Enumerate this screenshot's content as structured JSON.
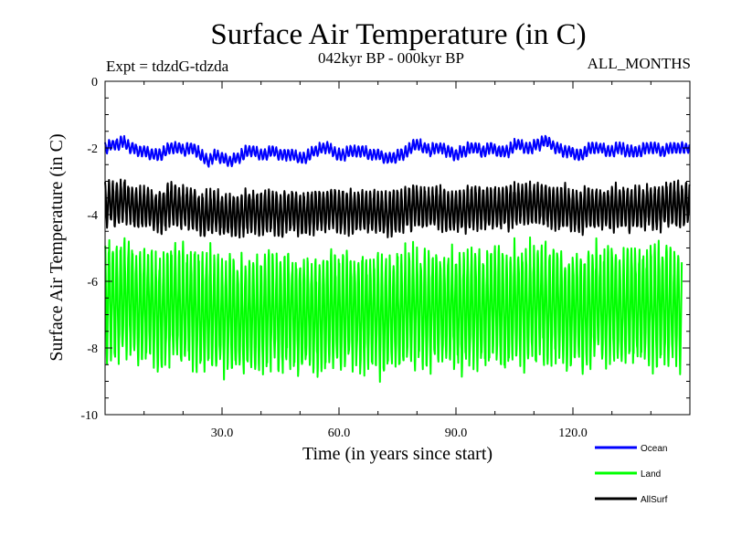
{
  "chart_data": {
    "type": "line",
    "title": "Surface Air Temperature (in C)",
    "subtitle_left": "Expt = tdzdG-tdzda",
    "subtitle_center": "042kyr BP - 000kyr BP",
    "subtitle_right": "ALL_MONTHS",
    "xlabel": "Time (in years since start)",
    "ylabel": "Surface Air Temperature (in C)",
    "xlim": [
      0,
      150
    ],
    "ylim": [
      -10,
      0
    ],
    "xticks": [
      30,
      60,
      90,
      120
    ],
    "xtick_labels": [
      "30.0",
      "60.0",
      "90.0",
      "120.0"
    ],
    "yticks": [
      0,
      -2,
      -4,
      -6,
      -8,
      -10
    ],
    "ytick_labels": [
      "0",
      "-2",
      "-4",
      "-6",
      "-8",
      "-10"
    ],
    "samples_per_year": 12,
    "series": [
      {
        "name": "Ocean",
        "color": "#0000ff",
        "annual_mean": [
          -2.0,
          -1.9,
          -1.9,
          -1.9,
          -1.8,
          -1.9,
          -2.0,
          -2.0,
          -2.1,
          -2.1,
          -2.1,
          -2.2,
          -2.2,
          -2.2,
          -2.2,
          -2.1,
          -2.0,
          -2.0,
          -2.0,
          -2.0,
          -2.1,
          -2.0,
          -2.0,
          -2.1,
          -2.2,
          -2.3,
          -2.4,
          -2.3,
          -2.2,
          -2.3,
          -2.3,
          -2.4,
          -2.4,
          -2.3,
          -2.3,
          -2.2,
          -2.1,
          -2.1,
          -2.1,
          -2.2,
          -2.2,
          -2.2,
          -2.1,
          -2.1,
          -2.2,
          -2.2,
          -2.2,
          -2.2,
          -2.2,
          -2.3,
          -2.3,
          -2.3,
          -2.2,
          -2.1,
          -2.1,
          -2.0,
          -2.0,
          -2.0,
          -2.1,
          -2.2,
          -2.2,
          -2.2,
          -2.1,
          -2.1,
          -2.1,
          -2.1,
          -2.1,
          -2.2,
          -2.2,
          -2.2,
          -2.2,
          -2.3,
          -2.3,
          -2.3,
          -2.3,
          -2.2,
          -2.2,
          -2.1,
          -2.0,
          -1.9,
          -1.9,
          -2.0,
          -2.0,
          -2.1,
          -2.0,
          -2.0,
          -2.0,
          -2.1,
          -2.1,
          -2.2,
          -2.2,
          -2.1,
          -2.1,
          -2.0,
          -2.0,
          -2.0,
          -2.1,
          -2.1,
          -2.0,
          -2.0,
          -2.1,
          -2.1,
          -2.1,
          -2.1,
          -2.0,
          -1.9,
          -1.9,
          -2.0,
          -2.0,
          -2.0,
          -1.9,
          -1.9,
          -1.8,
          -1.8,
          -1.9,
          -2.0,
          -2.0,
          -2.1,
          -2.1,
          -2.1,
          -2.2,
          -2.2,
          -2.2,
          -2.1,
          -2.0,
          -2.0,
          -2.0,
          -2.0,
          -2.1,
          -2.1,
          -2.1,
          -2.0,
          -2.0,
          -2.1,
          -2.1,
          -2.1,
          -2.1,
          -2.1,
          -2.0,
          -2.0,
          -2.0,
          -2.0,
          -2.1,
          -2.1,
          -2.0,
          -2.0,
          -2.0,
          -2.0,
          -2.0,
          -2.0
        ],
        "seasonal_amplitude": 0.15
      },
      {
        "name": "Land",
        "color": "#00ff00",
        "annual_mean": [
          -6.6,
          -6.5,
          -6.6,
          -6.7,
          -6.6,
          -6.5,
          -6.5,
          -6.7,
          -6.8,
          -6.8,
          -6.7,
          -6.6,
          -6.8,
          -6.9,
          -6.9,
          -6.8,
          -6.6,
          -6.6,
          -6.7,
          -6.8,
          -6.7,
          -6.7,
          -6.8,
          -6.9,
          -7.0,
          -7.0,
          -6.9,
          -6.8,
          -6.9,
          -7.0,
          -7.0,
          -6.9,
          -6.9,
          -7.0,
          -7.1,
          -7.1,
          -7.0,
          -6.9,
          -7.0,
          -7.1,
          -7.0,
          -6.9,
          -6.8,
          -6.9,
          -7.0,
          -7.0,
          -6.9,
          -6.8,
          -6.9,
          -7.0,
          -7.1,
          -7.0,
          -6.9,
          -7.0,
          -7.1,
          -7.0,
          -6.9,
          -6.8,
          -6.8,
          -6.9,
          -7.0,
          -6.9,
          -6.8,
          -6.8,
          -6.9,
          -7.0,
          -7.0,
          -6.9,
          -6.8,
          -6.9,
          -7.0,
          -7.1,
          -7.0,
          -6.9,
          -6.9,
          -7.0,
          -6.9,
          -6.8,
          -6.7,
          -6.7,
          -6.8,
          -6.9,
          -6.9,
          -6.8,
          -6.7,
          -6.8,
          -6.9,
          -6.9,
          -6.8,
          -6.8,
          -6.9,
          -7.0,
          -6.9,
          -6.8,
          -6.7,
          -6.8,
          -6.9,
          -6.9,
          -6.8,
          -6.7,
          -6.7,
          -6.8,
          -6.9,
          -6.8,
          -6.7,
          -6.6,
          -6.7,
          -6.8,
          -6.8,
          -6.7,
          -6.6,
          -6.6,
          -6.7,
          -6.8,
          -6.8,
          -6.7,
          -6.7,
          -6.8,
          -6.9,
          -6.9,
          -6.8,
          -6.8,
          -6.9,
          -6.9,
          -6.8,
          -6.7,
          -6.7,
          -6.8,
          -6.8,
          -6.7,
          -6.7,
          -6.8,
          -6.9,
          -6.8,
          -6.7,
          -6.7,
          -6.8,
          -6.8,
          -6.7,
          -6.7,
          -6.8,
          -6.8,
          -6.7,
          -6.7,
          -6.8,
          -6.8,
          -6.7,
          -6.8
        ],
        "seasonal_amplitude": 1.6
      },
      {
        "name": "AllSurf",
        "color": "#000000",
        "annual_mean": [
          -3.7,
          -3.6,
          -3.7,
          -3.7,
          -3.6,
          -3.6,
          -3.7,
          -3.8,
          -3.8,
          -3.8,
          -3.8,
          -3.8,
          -3.9,
          -3.9,
          -3.9,
          -3.8,
          -3.7,
          -3.7,
          -3.8,
          -3.8,
          -3.8,
          -3.8,
          -3.8,
          -3.9,
          -4.0,
          -4.0,
          -4.0,
          -3.9,
          -3.9,
          -4.0,
          -4.0,
          -4.0,
          -4.0,
          -4.0,
          -4.0,
          -4.0,
          -3.9,
          -3.9,
          -3.9,
          -4.0,
          -4.0,
          -3.9,
          -3.9,
          -3.9,
          -4.0,
          -4.0,
          -3.9,
          -3.9,
          -3.9,
          -4.0,
          -4.0,
          -4.0,
          -3.9,
          -3.9,
          -3.9,
          -3.9,
          -3.9,
          -3.8,
          -3.8,
          -3.9,
          -3.9,
          -3.9,
          -3.9,
          -3.9,
          -3.9,
          -3.9,
          -3.9,
          -3.9,
          -3.9,
          -3.9,
          -3.9,
          -4.0,
          -4.0,
          -3.9,
          -3.9,
          -3.9,
          -3.9,
          -3.8,
          -3.8,
          -3.7,
          -3.8,
          -3.8,
          -3.8,
          -3.8,
          -3.8,
          -3.8,
          -3.8,
          -3.9,
          -3.9,
          -3.9,
          -3.9,
          -3.9,
          -3.9,
          -3.8,
          -3.8,
          -3.8,
          -3.8,
          -3.8,
          -3.8,
          -3.8,
          -3.8,
          -3.8,
          -3.8,
          -3.8,
          -3.7,
          -3.7,
          -3.7,
          -3.7,
          -3.7,
          -3.7,
          -3.7,
          -3.7,
          -3.7,
          -3.7,
          -3.8,
          -3.8,
          -3.8,
          -3.8,
          -3.8,
          -3.9,
          -3.9,
          -3.9,
          -3.9,
          -3.8,
          -3.8,
          -3.8,
          -3.8,
          -3.8,
          -3.8,
          -3.8,
          -3.8,
          -3.8,
          -3.8,
          -3.8,
          -3.8,
          -3.8,
          -3.8,
          -3.8,
          -3.8,
          -3.7,
          -3.8,
          -3.8,
          -3.8,
          -3.7,
          -3.7,
          -3.7,
          -3.7,
          -3.7,
          -3.7,
          -3.6
        ],
        "seasonal_amplitude": 0.6
      }
    ],
    "legend": {
      "placement": "bottom-right",
      "entries": [
        {
          "label": "Ocean",
          "color": "#0000ff"
        },
        {
          "label": "Land",
          "color": "#00ff00"
        },
        {
          "label": "AllSurf",
          "color": "#000000"
        }
      ]
    }
  }
}
